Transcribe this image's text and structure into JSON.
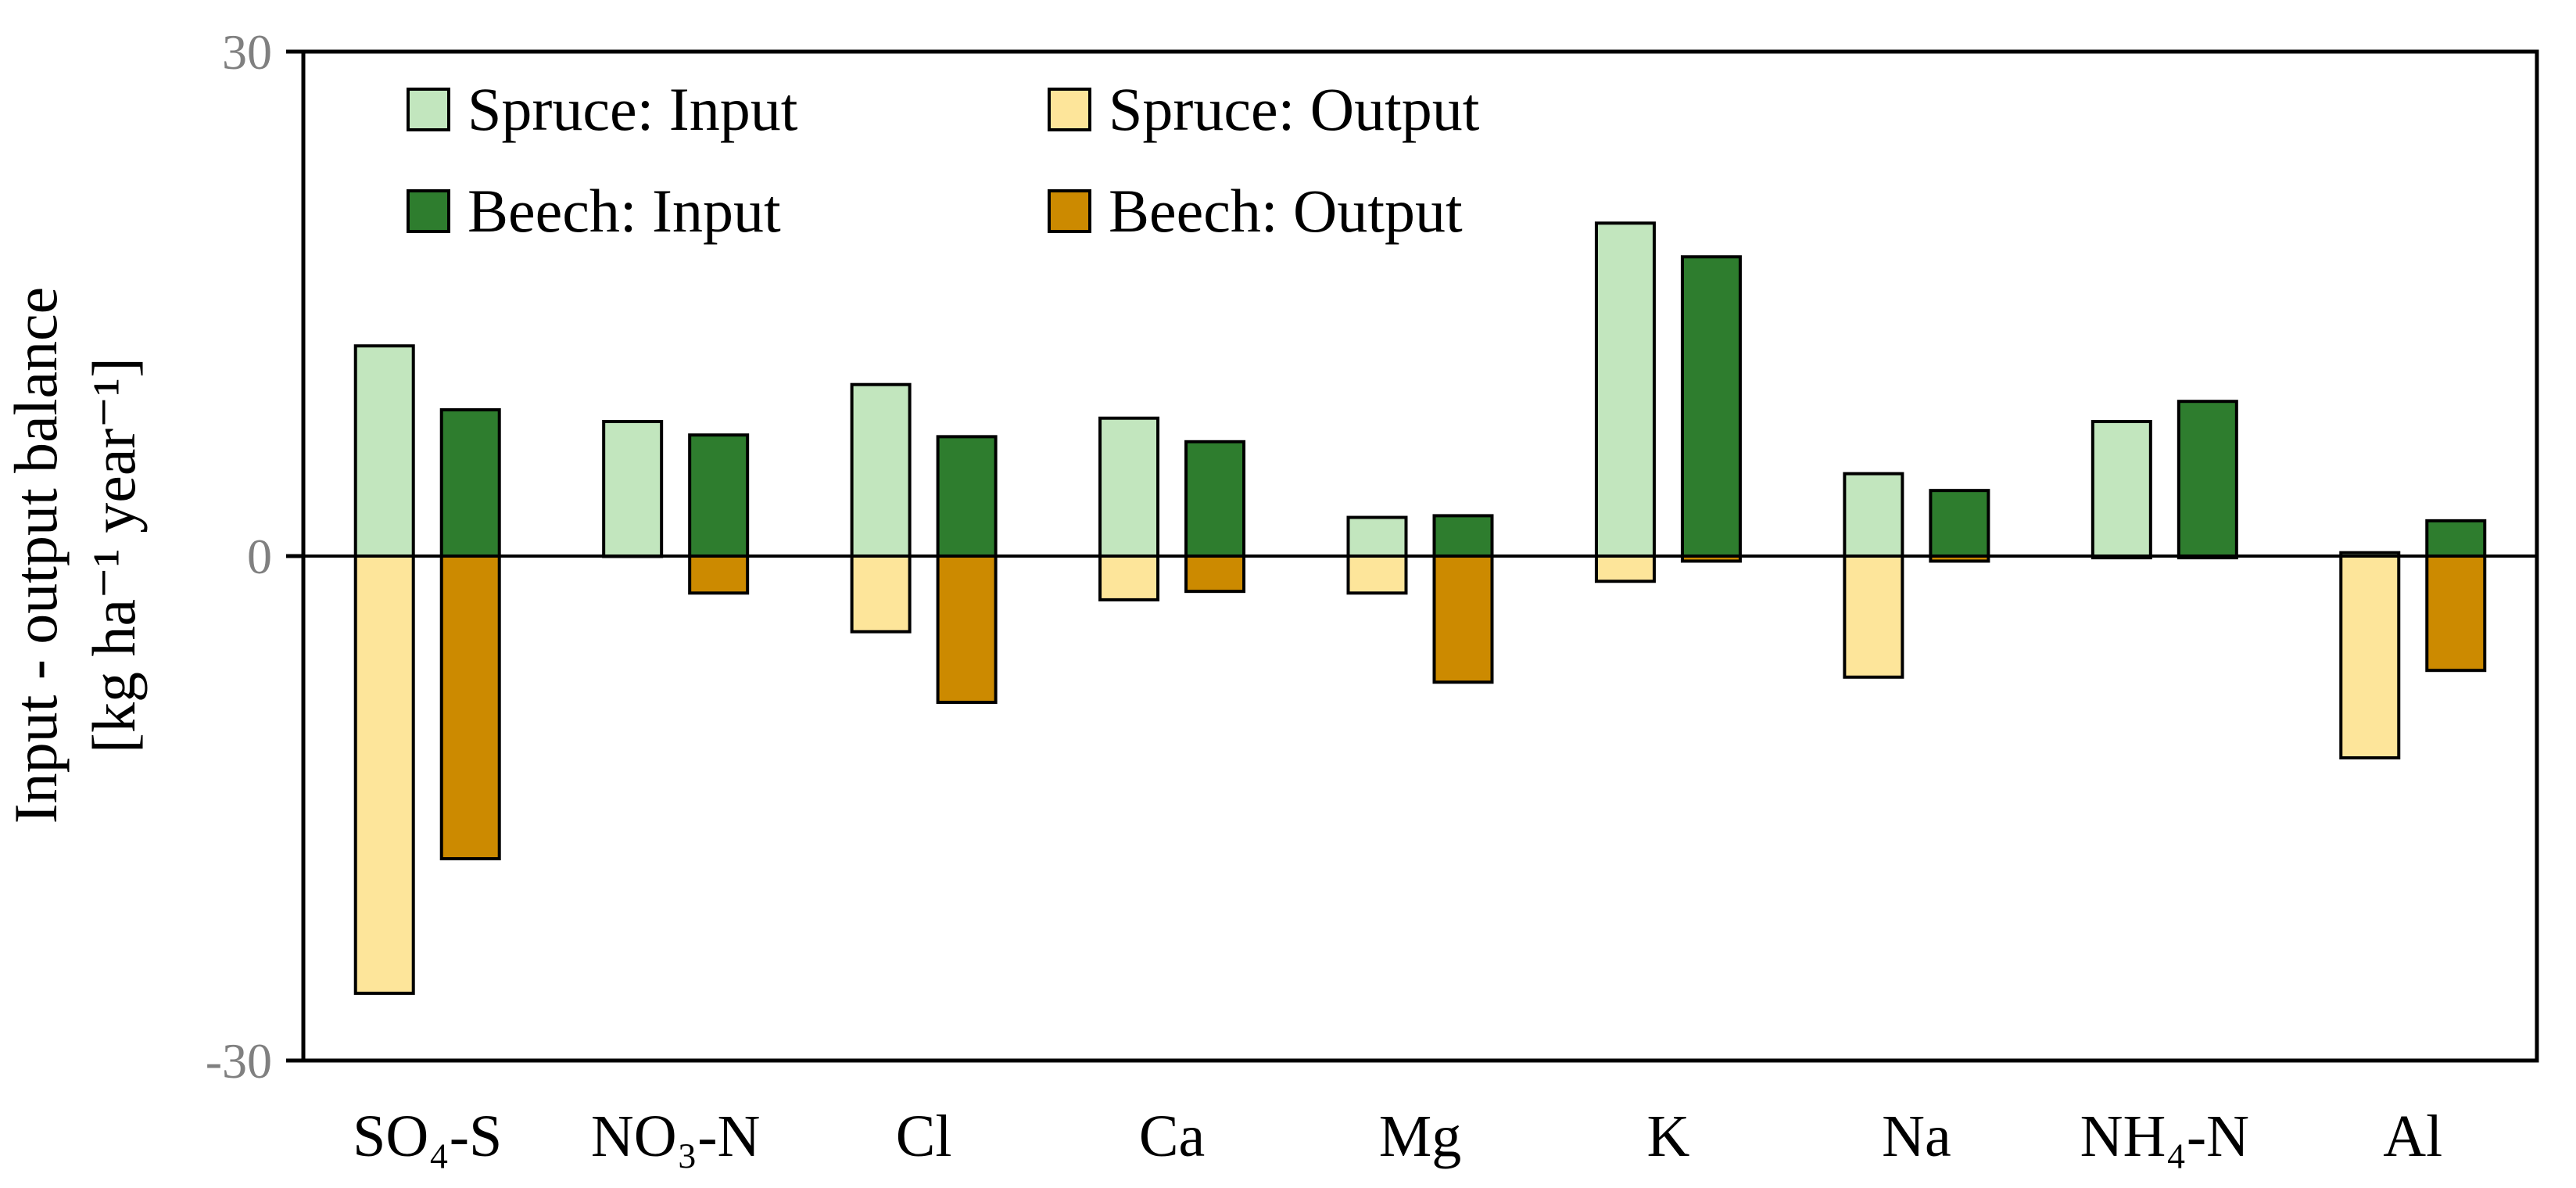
{
  "colors": {
    "spruce_input": "#c2e6be",
    "beech_input": "#2e7d2e",
    "spruce_output": "#fde59a",
    "beech_output": "#cc8a00"
  },
  "chart_data": {
    "type": "bar",
    "ylabel_line1": "Input - output balance",
    "ylabel_line2": "[kg ha⁻¹ year⁻¹]",
    "ylim": [
      -30,
      30
    ],
    "yticks": [
      "30",
      "0",
      "-30"
    ],
    "categories": [
      "SO₄-S",
      "NO₃-N",
      "Cl",
      "Ca",
      "Mg",
      "K",
      "Na",
      "NH₄-N",
      "Al"
    ],
    "series": [
      {
        "name": "Spruce: Input",
        "color_key": "spruce_input",
        "values": [
          12.5,
          8.0,
          10.2,
          8.2,
          2.3,
          19.8,
          4.9,
          8.0,
          0.2
        ]
      },
      {
        "name": "Beech: Input",
        "color_key": "beech_input",
        "values": [
          8.7,
          7.2,
          7.1,
          6.8,
          2.4,
          17.8,
          3.9,
          9.2,
          2.1
        ]
      },
      {
        "name": "Spruce: Output",
        "color_key": "spruce_output",
        "values": [
          -26.0,
          0.0,
          -4.5,
          -2.6,
          -2.2,
          -1.5,
          -7.2,
          -0.1,
          -12.0
        ]
      },
      {
        "name": "Beech: Output",
        "color_key": "beech_output",
        "values": [
          -18.0,
          -2.2,
          -8.7,
          -2.1,
          -7.5,
          -0.3,
          -0.3,
          -0.1,
          -6.8
        ]
      }
    ],
    "legend": [
      {
        "label": "Spruce: Input",
        "color_key": "spruce_input"
      },
      {
        "label": "Spruce: Output",
        "color_key": "spruce_output"
      },
      {
        "label": "Beech: Input",
        "color_key": "beech_input"
      },
      {
        "label": "Beech: Output",
        "color_key": "beech_output"
      }
    ],
    "legend_position": "top-left"
  }
}
